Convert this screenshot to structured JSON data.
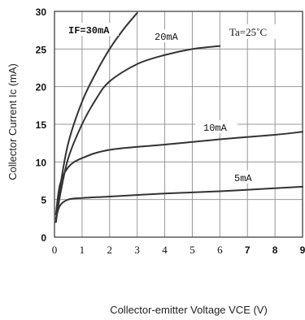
{
  "chart_data": {
    "type": "line",
    "title": "",
    "xlabel": "Collector-emitter Voltage VCE (V)",
    "ylabel": "Collector Current Ic (mA)",
    "xlim": [
      0,
      9
    ],
    "ylim": [
      0,
      30
    ],
    "x_ticks": [
      "0",
      "1",
      "2",
      "3",
      "4",
      "5",
      "6",
      "7",
      "8",
      "9"
    ],
    "y_ticks": [
      "0",
      "5",
      "10",
      "15",
      "20",
      "25",
      "30"
    ],
    "grid": true,
    "condition": "Ta=25˚C",
    "series": [
      {
        "name": "IF=30mA",
        "x": [
          0.05,
          0.2,
          0.5,
          1,
          1.5,
          2,
          2.5,
          3
        ],
        "y": [
          2,
          6.5,
          12.5,
          18,
          21.8,
          25,
          27.6,
          29.8
        ]
      },
      {
        "name": "20mA",
        "x": [
          0.05,
          0.2,
          0.5,
          1,
          1.5,
          2,
          3,
          4,
          5,
          6
        ],
        "y": [
          2,
          5.5,
          10.5,
          15,
          18.3,
          20.7,
          23,
          24.2,
          25,
          25.4
        ]
      },
      {
        "name": "10mA",
        "x": [
          0.05,
          0.2,
          0.5,
          1,
          2,
          4,
          6,
          8,
          9
        ],
        "y": [
          3,
          7,
          9.3,
          10.5,
          11.6,
          12.3,
          13,
          13.6,
          14
        ]
      },
      {
        "name": "5mA",
        "x": [
          0.05,
          0.2,
          0.5,
          1,
          2,
          4,
          6,
          8,
          9
        ],
        "y": [
          2.5,
          4.2,
          5,
          5.2,
          5.4,
          5.8,
          6.1,
          6.5,
          6.7
        ]
      }
    ],
    "labels": {
      "s30": "IF=30mA",
      "s20": "20mA",
      "s10": "10mA",
      "s5": "5mA"
    }
  }
}
